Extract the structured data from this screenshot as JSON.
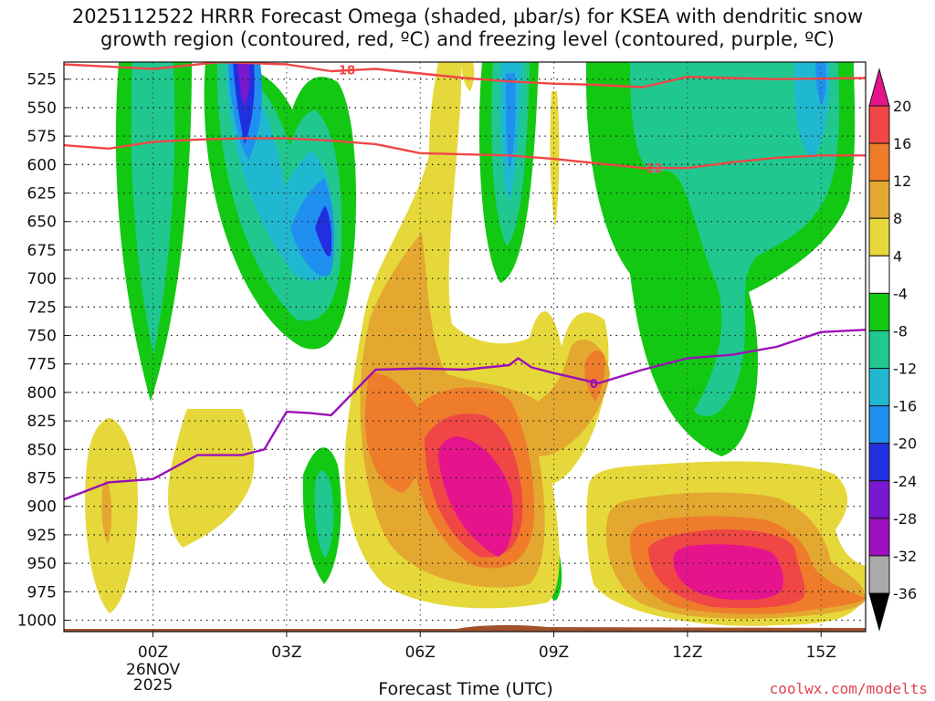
{
  "title": "2025112522 HRRR Forecast Omega (shaded, μbar/s) for KSEA with dendritic snow\ngrowth region (contoured, red, ºC) and freezing level (contoured, purple, ºC)",
  "xlabel": "Forecast Time (UTC)",
  "credit": "coolwx.com/modelts",
  "chart_data": {
    "type": "heatmap",
    "x_ticks": [
      "00Z",
      "03Z",
      "06Z",
      "09Z",
      "12Z",
      "15Z"
    ],
    "x_tick_hours": [
      0,
      3,
      6,
      9,
      12,
      15
    ],
    "date_label": [
      "26NOV",
      "2025"
    ],
    "xlim_hours": [
      -2,
      16
    ],
    "y_ticks": [
      525,
      550,
      575,
      600,
      625,
      650,
      675,
      700,
      725,
      750,
      775,
      800,
      825,
      850,
      875,
      900,
      925,
      950,
      975,
      1000
    ],
    "ylim_hpa": [
      510,
      1010
    ],
    "colorbar": {
      "levels": [
        -36,
        -32,
        -28,
        -24,
        -20,
        -16,
        -12,
        -8,
        -4,
        4,
        8,
        12,
        16,
        20
      ],
      "labels": [
        "20",
        "16",
        "12",
        "8",
        "4",
        "-4",
        "-8",
        "-12",
        "-16",
        "-20",
        "-24",
        "-28",
        "-32",
        "-36"
      ],
      "colors": {
        "above20": "#e6148c",
        "16to20": "#f04646",
        "12to16": "#ee7c2b",
        "8to12": "#e4a830",
        "4to8": "#e6d83a",
        "m4to4": "#ffffff",
        "m8tom4": "#12c812",
        "m12tom8": "#20c890",
        "m16tom12": "#20b8d0",
        "m20tom16": "#2090f0",
        "m24tom20": "#2030e0",
        "m28tom24": "#7818d0",
        "m32tom28": "#a010c0",
        "m36tom32": "#aaaaaa",
        "belowm36": "#000000"
      }
    },
    "temperature_contours": [
      {
        "label": "-18",
        "color": "#f04646",
        "points": [
          [
            -2,
            512
          ],
          [
            0,
            516
          ],
          [
            1.5,
            510
          ],
          [
            3,
            512
          ],
          [
            4,
            518
          ],
          [
            5,
            516
          ],
          [
            6,
            520
          ],
          [
            7,
            524
          ],
          [
            8,
            527
          ],
          [
            9,
            529
          ],
          [
            10,
            530
          ],
          [
            11,
            532
          ],
          [
            12,
            523
          ],
          [
            13,
            524
          ],
          [
            14,
            525
          ],
          [
            16,
            524
          ]
        ]
      },
      {
        "label": "-12",
        "color": "#f04646",
        "points": [
          [
            -2,
            583
          ],
          [
            -1,
            586
          ],
          [
            0,
            580
          ],
          [
            1,
            578
          ],
          [
            2,
            577
          ],
          [
            3,
            577
          ],
          [
            4,
            579
          ],
          [
            5,
            582
          ],
          [
            6,
            590
          ],
          [
            7,
            591
          ],
          [
            8,
            592
          ],
          [
            9,
            595
          ],
          [
            10,
            599
          ],
          [
            11,
            603
          ],
          [
            12,
            603
          ],
          [
            13,
            598
          ],
          [
            14,
            594
          ],
          [
            15,
            592
          ],
          [
            16,
            592
          ]
        ]
      },
      {
        "label": "0",
        "color": "#9a10b8",
        "points": [
          [
            -2,
            894
          ],
          [
            -1,
            879
          ],
          [
            0,
            876
          ],
          [
            1,
            855
          ],
          [
            2,
            855
          ],
          [
            2.5,
            850
          ],
          [
            3,
            817
          ],
          [
            3.5,
            818
          ],
          [
            4,
            820
          ],
          [
            4.5,
            800
          ],
          [
            5,
            780
          ],
          [
            6,
            779
          ],
          [
            7,
            780
          ],
          [
            8,
            776
          ],
          [
            8.2,
            770
          ],
          [
            8.5,
            778
          ],
          [
            9,
            783
          ],
          [
            10,
            792
          ],
          [
            11,
            780
          ],
          [
            12,
            770
          ],
          [
            13,
            767
          ],
          [
            14,
            760
          ],
          [
            15,
            747
          ],
          [
            16,
            745
          ]
        ]
      }
    ]
  }
}
